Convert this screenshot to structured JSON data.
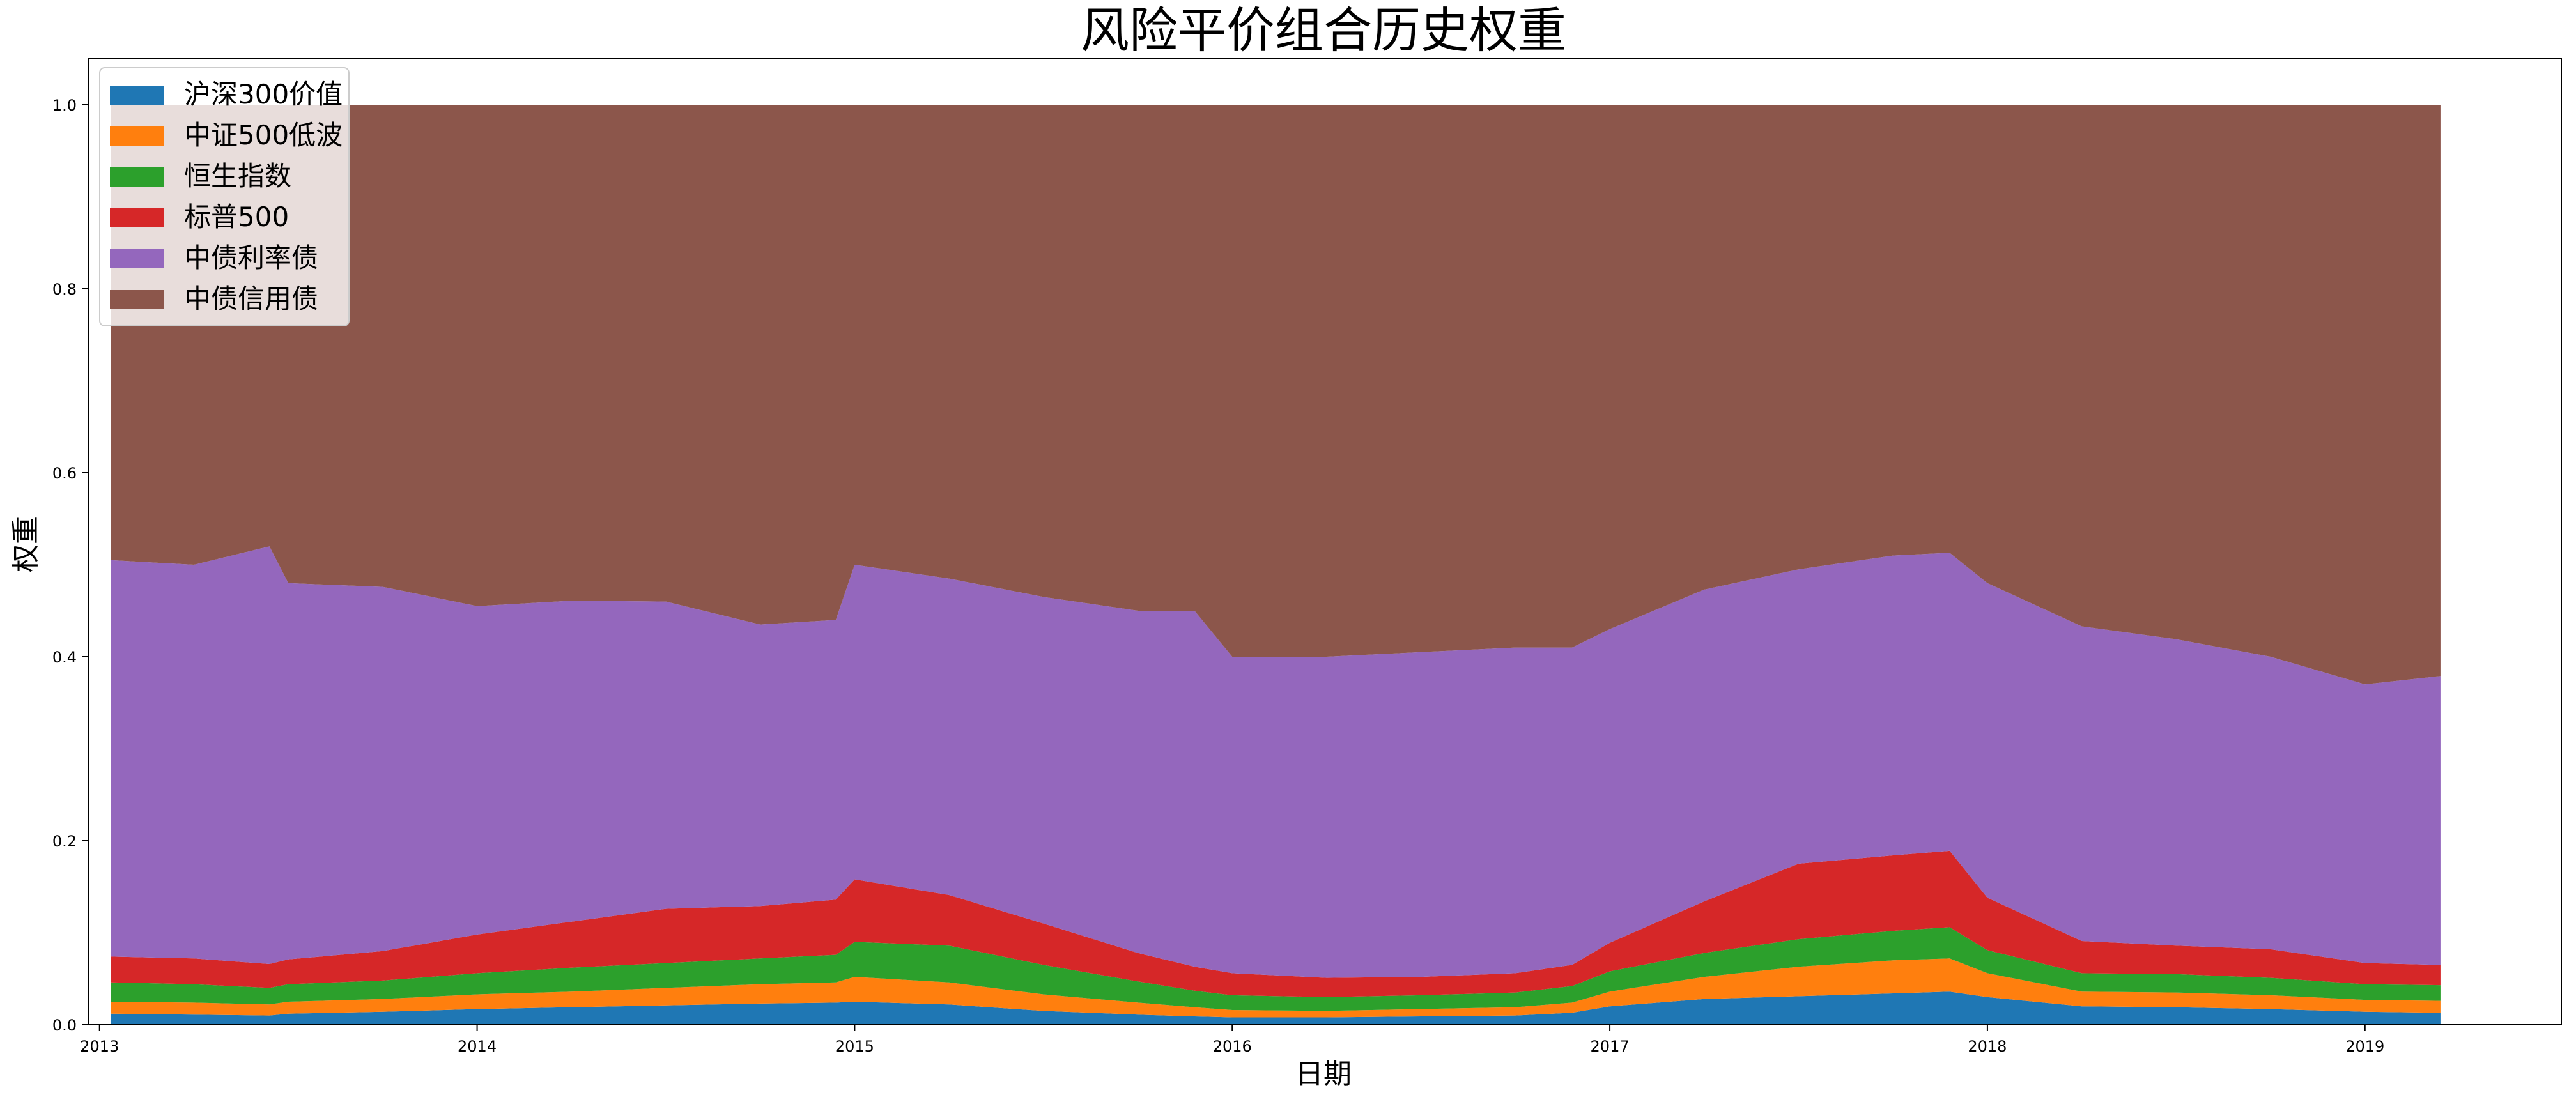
{
  "chart_data": {
    "type": "area",
    "stacked": true,
    "title": "风险平价组合历史权重",
    "xlabel": "日期",
    "ylabel": "权重",
    "xlim": [
      2012.97,
      2019.52
    ],
    "ylim": [
      0,
      1.05
    ],
    "x_ticks": [
      {
        "value": 2013,
        "label": "2013"
      },
      {
        "value": 2014,
        "label": "2014"
      },
      {
        "value": 2015,
        "label": "2015"
      },
      {
        "value": 2016,
        "label": "2016"
      },
      {
        "value": 2017,
        "label": "2017"
      },
      {
        "value": 2018,
        "label": "2018"
      },
      {
        "value": 2019,
        "label": "2019"
      }
    ],
    "y_ticks": [
      {
        "value": 0.0,
        "label": "0.0"
      },
      {
        "value": 0.2,
        "label": "0.2"
      },
      {
        "value": 0.4,
        "label": "0.4"
      },
      {
        "value": 0.6,
        "label": "0.6"
      },
      {
        "value": 0.8,
        "label": "0.8"
      },
      {
        "value": 1.0,
        "label": "1.0"
      }
    ],
    "grid": false,
    "legend_position": "top-left",
    "x": [
      2013.03,
      2013.25,
      2013.45,
      2013.5,
      2013.75,
      2014.0,
      2014.25,
      2014.5,
      2014.75,
      2014.95,
      2015.0,
      2015.25,
      2015.5,
      2015.75,
      2015.9,
      2016.0,
      2016.25,
      2016.5,
      2016.75,
      2016.9,
      2017.0,
      2017.25,
      2017.5,
      2017.75,
      2017.9,
      2018.0,
      2018.25,
      2018.5,
      2018.75,
      2019.0,
      2019.2
    ],
    "series": [
      {
        "name": "沪深300价值",
        "color": "#1f77b4",
        "values": [
          0.012,
          0.011,
          0.01,
          0.012,
          0.014,
          0.017,
          0.019,
          0.021,
          0.023,
          0.024,
          0.025,
          0.022,
          0.015,
          0.011,
          0.009,
          0.008,
          0.008,
          0.009,
          0.01,
          0.013,
          0.02,
          0.028,
          0.031,
          0.034,
          0.036,
          0.03,
          0.02,
          0.019,
          0.017,
          0.014,
          0.013
        ]
      },
      {
        "name": "中证500低波",
        "color": "#ff7f0e",
        "values": [
          0.013,
          0.013,
          0.012,
          0.013,
          0.014,
          0.016,
          0.017,
          0.019,
          0.021,
          0.022,
          0.027,
          0.024,
          0.018,
          0.013,
          0.01,
          0.008,
          0.007,
          0.008,
          0.009,
          0.011,
          0.016,
          0.024,
          0.032,
          0.036,
          0.036,
          0.026,
          0.016,
          0.016,
          0.015,
          0.013,
          0.013
        ]
      },
      {
        "name": "恒生指数",
        "color": "#2ca02c",
        "values": [
          0.021,
          0.02,
          0.018,
          0.019,
          0.02,
          0.023,
          0.026,
          0.027,
          0.028,
          0.03,
          0.038,
          0.04,
          0.032,
          0.023,
          0.018,
          0.016,
          0.015,
          0.015,
          0.016,
          0.018,
          0.022,
          0.026,
          0.03,
          0.032,
          0.034,
          0.025,
          0.02,
          0.02,
          0.019,
          0.017,
          0.017
        ]
      },
      {
        "name": "标普500",
        "color": "#d62728",
        "values": [
          0.028,
          0.028,
          0.026,
          0.027,
          0.032,
          0.042,
          0.05,
          0.059,
          0.057,
          0.06,
          0.068,
          0.055,
          0.045,
          0.031,
          0.026,
          0.024,
          0.021,
          0.02,
          0.021,
          0.023,
          0.031,
          0.056,
          0.082,
          0.082,
          0.083,
          0.057,
          0.035,
          0.031,
          0.031,
          0.023,
          0.022
        ]
      },
      {
        "name": "中债利率债",
        "color": "#9467bd",
        "values": [
          0.431,
          0.428,
          0.454,
          0.409,
          0.396,
          0.357,
          0.349,
          0.334,
          0.306,
          0.304,
          0.342,
          0.344,
          0.355,
          0.372,
          0.387,
          0.344,
          0.349,
          0.353,
          0.354,
          0.345,
          0.341,
          0.339,
          0.32,
          0.326,
          0.324,
          0.342,
          0.342,
          0.333,
          0.318,
          0.303,
          0.314
        ]
      },
      {
        "name": "中债信用债",
        "color": "#8c564b",
        "values": [
          0.495,
          0.5,
          0.48,
          0.52,
          0.524,
          0.545,
          0.539,
          0.54,
          0.565,
          0.56,
          0.5,
          0.515,
          0.535,
          0.55,
          0.55,
          0.6,
          0.6,
          0.595,
          0.59,
          0.59,
          0.57,
          0.527,
          0.505,
          0.49,
          0.487,
          0.52,
          0.567,
          0.581,
          0.6,
          0.63,
          0.621
        ]
      }
    ]
  }
}
